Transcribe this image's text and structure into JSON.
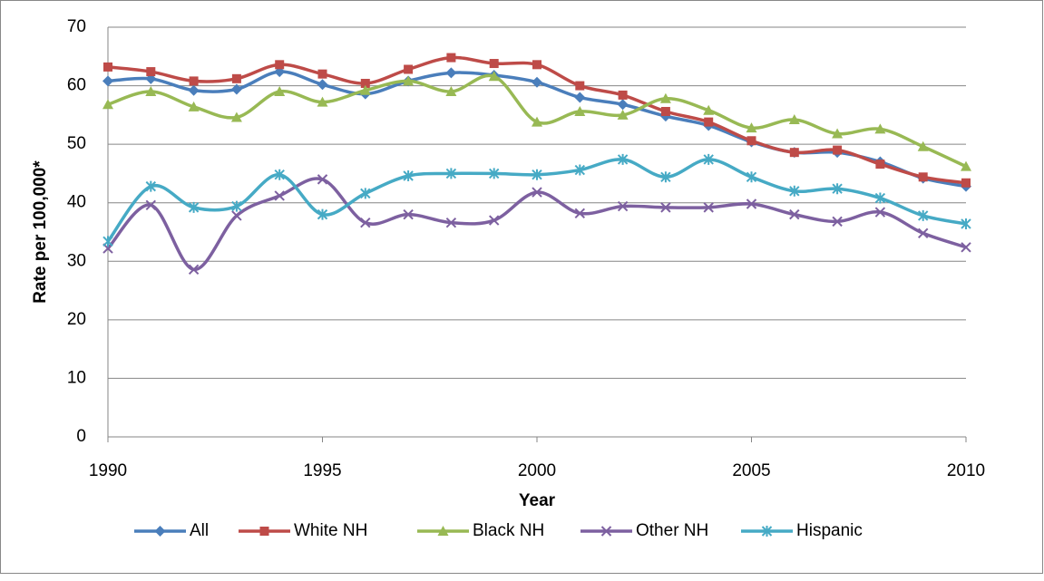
{
  "chart_data": {
    "type": "line",
    "x_label": "Year",
    "y_label": "Rate per 100,000*",
    "x": [
      1990,
      1991,
      1992,
      1993,
      1994,
      1995,
      1996,
      1997,
      1998,
      1999,
      2000,
      2001,
      2002,
      2003,
      2004,
      2005,
      2006,
      2007,
      2008,
      2009,
      2010
    ],
    "xlim": [
      1990,
      2010
    ],
    "xticks": [
      1990,
      1995,
      2000,
      2005,
      2010
    ],
    "ylim": [
      0,
      70
    ],
    "yticks": [
      0,
      10,
      20,
      30,
      40,
      50,
      60,
      70
    ],
    "grid": true,
    "smooth": true,
    "legend": "bottom",
    "series": [
      {
        "name": "All",
        "color": "#4a7ebb",
        "marker": "diamond",
        "values": [
          60.8,
          61.2,
          59.2,
          59.4,
          62.4,
          60.2,
          58.6,
          60.8,
          62.2,
          61.8,
          60.6,
          58.0,
          56.8,
          54.8,
          53.2,
          50.4,
          48.6,
          48.6,
          47.0,
          44.2,
          42.8
        ]
      },
      {
        "name": "White NH",
        "color": "#be4b48",
        "marker": "square",
        "values": [
          63.2,
          62.4,
          60.8,
          61.2,
          63.6,
          62.0,
          60.4,
          62.8,
          64.8,
          63.8,
          63.6,
          60.0,
          58.4,
          55.6,
          53.8,
          50.6,
          48.6,
          49.0,
          46.6,
          44.4,
          43.4
        ]
      },
      {
        "name": "Black NH",
        "color": "#98b954",
        "marker": "triangle",
        "values": [
          56.8,
          59.0,
          56.4,
          54.6,
          59.0,
          57.2,
          59.2,
          60.8,
          59.0,
          61.6,
          53.8,
          55.6,
          55.0,
          57.8,
          55.8,
          52.8,
          54.2,
          51.8,
          52.6,
          49.6,
          46.2
        ]
      },
      {
        "name": "Other NH",
        "color": "#7d60a0",
        "marker": "x",
        "values": [
          32.2,
          39.6,
          28.6,
          37.8,
          41.2,
          44.0,
          36.6,
          38.0,
          36.6,
          37.0,
          41.8,
          38.2,
          39.4,
          39.2,
          39.2,
          39.8,
          38.0,
          36.8,
          38.4,
          34.8,
          32.4
        ]
      },
      {
        "name": "Hispanic",
        "color": "#46aac5",
        "marker": "asterisk",
        "values": [
          33.4,
          42.8,
          39.2,
          39.4,
          44.8,
          38.0,
          41.6,
          44.6,
          45.0,
          45.0,
          44.8,
          45.6,
          47.4,
          44.4,
          47.4,
          44.4,
          42.0,
          42.4,
          40.8,
          37.8,
          36.4
        ]
      }
    ]
  }
}
